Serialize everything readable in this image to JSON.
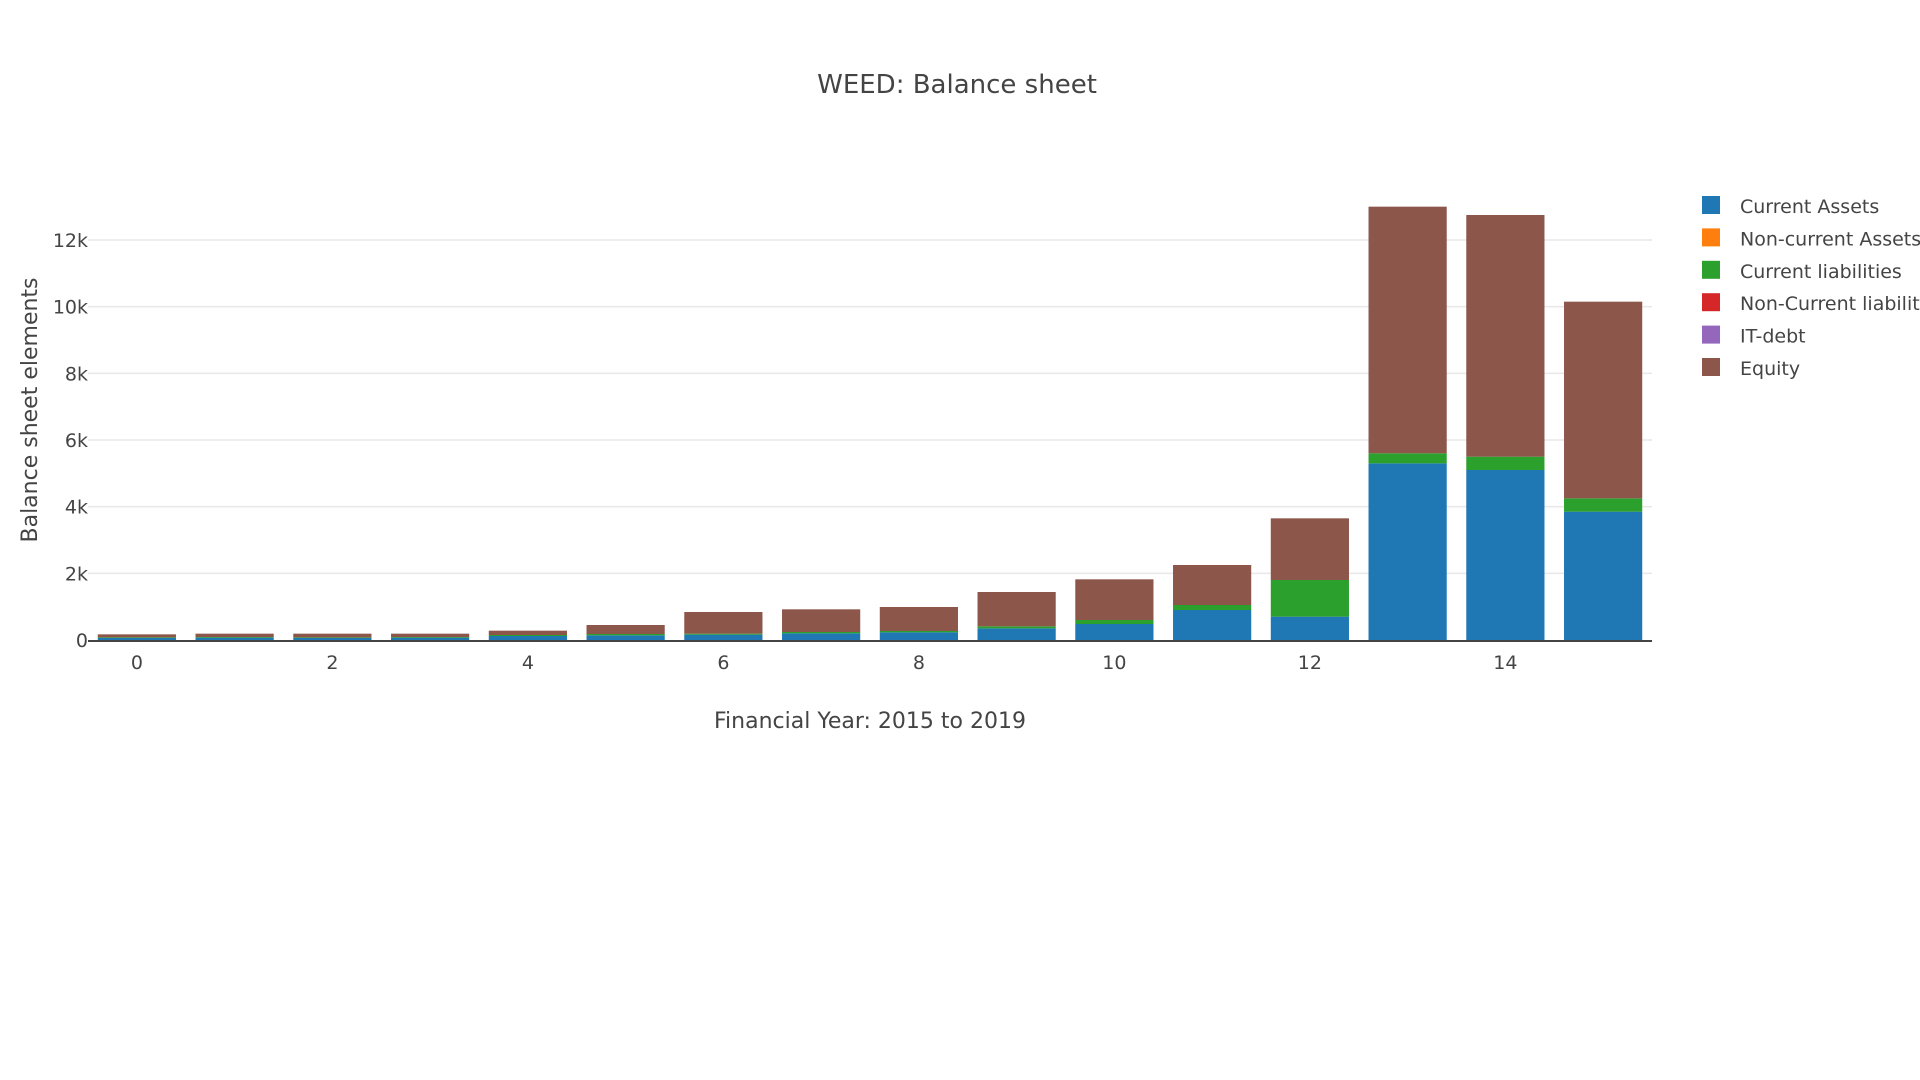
{
  "chart_data": {
    "type": "bar",
    "stacked": true,
    "title": "WEED: Balance sheet",
    "xlabel": "Financial Year: 2015 to 2019",
    "ylabel": "Balance sheet elements",
    "x": [
      0,
      1,
      2,
      3,
      4,
      5,
      6,
      7,
      8,
      9,
      10,
      11,
      12,
      13,
      14,
      15
    ],
    "xticks": [
      "0",
      "2",
      "4",
      "6",
      "8",
      "10",
      "12",
      "14"
    ],
    "xtick_values": [
      0,
      2,
      4,
      6,
      8,
      10,
      12,
      14
    ],
    "yticks": [
      "0",
      "2k",
      "4k",
      "6k",
      "8k",
      "10k",
      "12k"
    ],
    "ytick_values": [
      0,
      2000,
      4000,
      6000,
      8000,
      10000,
      12000
    ],
    "ylim": [
      0,
      13500
    ],
    "xlim": [
      -0.5,
      15.5
    ],
    "grid": true,
    "legend_position": "right",
    "series": [
      {
        "name": "Current Assets",
        "color": "#1f77b4",
        "values": [
          60,
          70,
          60,
          70,
          120,
          140,
          160,
          200,
          230,
          350,
          480,
          900,
          700,
          5300,
          5100,
          3850
        ]
      },
      {
        "name": "Non-current Assets",
        "color": "#ff7f0e",
        "values": [
          0,
          0,
          0,
          0,
          0,
          0,
          0,
          0,
          0,
          0,
          0,
          0,
          0,
          0,
          0,
          0
        ]
      },
      {
        "name": "Current liabilities",
        "color": "#2ca02c",
        "values": [
          20,
          20,
          20,
          20,
          30,
          40,
          30,
          40,
          40,
          60,
          120,
          150,
          1100,
          300,
          400,
          400
        ]
      },
      {
        "name": "Non-Current liabilities",
        "color": "#d62728",
        "values": [
          0,
          0,
          0,
          0,
          0,
          0,
          0,
          0,
          0,
          0,
          0,
          0,
          0,
          0,
          0,
          0
        ]
      },
      {
        "name": "IT-debt",
        "color": "#9467bd",
        "values": [
          0,
          0,
          0,
          0,
          0,
          0,
          0,
          0,
          0,
          0,
          0,
          0,
          0,
          0,
          0,
          0
        ]
      },
      {
        "name": "Equity",
        "color": "#8c564b",
        "values": [
          90,
          100,
          110,
          100,
          130,
          270,
          650,
          680,
          720,
          1030,
          1220,
          1200,
          1850,
          7400,
          7250,
          5900
        ]
      }
    ]
  }
}
